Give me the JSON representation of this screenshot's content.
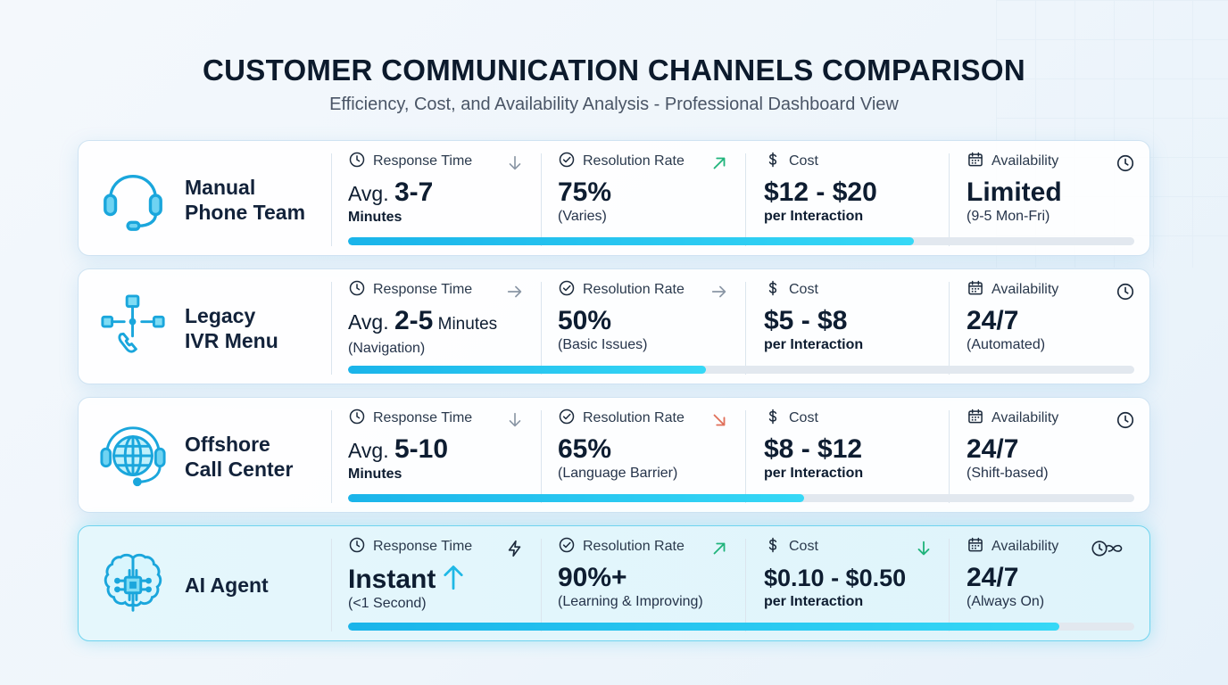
{
  "header": {
    "title": "CUSTOMER COMMUNICATION CHANNELS COMPARISON",
    "subtitle": "Efficiency, Cost, and Availability Analysis - Professional Dashboard View"
  },
  "labels": {
    "response": "Response Time",
    "resolution": "Resolution Rate",
    "cost": "Cost",
    "availability": "Availability"
  },
  "colors": {
    "accent": "#1ab4ea",
    "up": "#21b47c",
    "down": "#e0705a",
    "neutral": "#8a96a5"
  },
  "channels": [
    {
      "name": "Manual\nPhone Team",
      "icon": "headset-icon",
      "response": {
        "pre": "Avg. ",
        "value": "3-7",
        "post": "",
        "sub": "Minutes",
        "trend": "arrow-down-icon"
      },
      "resolution": {
        "value": "75%",
        "sub": "(Varies)",
        "trend": "arrow-up-right-icon"
      },
      "cost": {
        "value": "$12 - $20",
        "sub": "per Interaction"
      },
      "availability": {
        "value": "Limited",
        "sub": "(9-5 Mon-Fri)"
      },
      "progress": 0.72
    },
    {
      "name": "Legacy\nIVR Menu",
      "icon": "ivr-tree-icon",
      "response": {
        "pre": "Avg. ",
        "value": "2-5",
        "post": " Minutes",
        "sub": "(Navigation)",
        "trend": "arrow-right-icon"
      },
      "resolution": {
        "value": "50%",
        "sub": "(Basic Issues)",
        "trend": "arrow-right-icon"
      },
      "cost": {
        "value": "$5 - $8",
        "sub": "per Interaction"
      },
      "availability": {
        "value": "24/7",
        "sub": "(Automated)"
      },
      "progress": 0.455
    },
    {
      "name": "Offshore\nCall Center",
      "icon": "globe-headset-icon",
      "response": {
        "pre": "Avg. ",
        "value": "5-10",
        "post": "",
        "sub": "Minutes",
        "trend": "arrow-down-icon"
      },
      "resolution": {
        "value": "65%",
        "sub": "(Language Barrier)",
        "trend": "arrow-down-right-icon"
      },
      "cost": {
        "value": "$8 - $12",
        "sub": "per Interaction"
      },
      "availability": {
        "value": "24/7",
        "sub": "(Shift-based)"
      },
      "progress": 0.58
    },
    {
      "name": "AI Agent",
      "icon": "ai-brain-icon",
      "response": {
        "pre": "",
        "value": "Instant",
        "post": "",
        "sub": "(<1 Second)",
        "trend": "lightning-icon"
      },
      "resolution": {
        "value": "90%+",
        "sub": "(Learning & Improving)",
        "trend": "arrow-up-right-icon"
      },
      "cost": {
        "value": "$0.10 - $0.50",
        "sub": "per Interaction"
      },
      "availability": {
        "value": "24/7",
        "sub": "(Always On)"
      },
      "progress": 0.905
    }
  ]
}
